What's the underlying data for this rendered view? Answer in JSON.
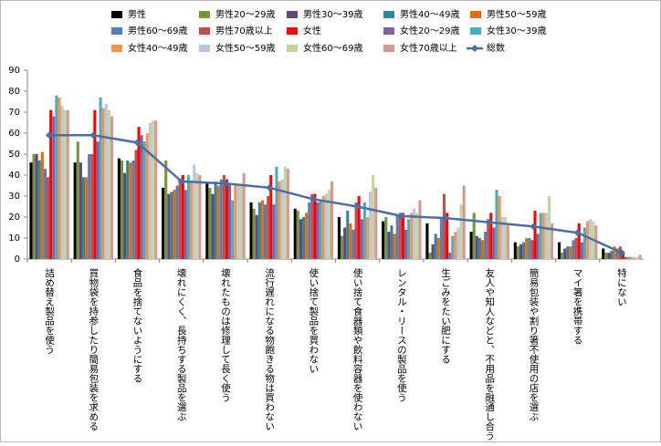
{
  "chart_data": {
    "type": "bar",
    "categories": [
      "詰め替え製品を使う",
      "買物袋を持参したり簡易包装を求める",
      "食品を捨てないようにする",
      "壊れにくく、長持ちする製品を選ぶ",
      "壊れたものは修理して長く使う",
      "流行遅れになる物飽きる物は買わない",
      "使い捨て製品を買わない",
      "使い捨て食器類や飲料容器を使わない",
      "レンタル・リースの製品を使う",
      "生ごみをたい肥にする",
      "友人や知人などと、不用品を融通し合う",
      "簡易包装や割り箸不使用の店を選ぶ",
      "マイ箸を携帯する",
      "特にない"
    ],
    "series": [
      {
        "name": "男性",
        "color": "#000000",
        "values": [
          46,
          46,
          48,
          34,
          36,
          27,
          24,
          20,
          18,
          17,
          13,
          8,
          8,
          5
        ]
      },
      {
        "name": "男性20～29歳",
        "color": "#77933c",
        "values": [
          50,
          56,
          47,
          47,
          34,
          24,
          23,
          11,
          20,
          3,
          22,
          6,
          3,
          3
        ]
      },
      {
        "name": "男性30～39歳",
        "color": "#604a7b",
        "values": [
          50,
          46,
          41,
          31,
          31,
          21,
          19,
          15,
          13,
          7,
          11,
          7,
          5,
          3
        ]
      },
      {
        "name": "男性40～49歳",
        "color": "#31859c",
        "values": [
          47,
          39,
          47,
          32,
          37,
          27,
          20,
          23,
          16,
          12,
          10,
          8,
          6,
          4
        ]
      },
      {
        "name": "男性50～59歳",
        "color": "#e46c0a",
        "values": [
          51,
          39,
          46,
          33,
          35,
          28,
          22,
          17,
          12,
          10,
          9,
          10,
          6,
          6
        ]
      },
      {
        "name": "男性60～69歳",
        "color": "#4f81bd",
        "values": [
          43,
          50,
          47,
          35,
          38,
          26,
          27,
          14,
          21,
          20,
          13,
          10,
          9,
          5
        ]
      },
      {
        "name": "男性70歳以上",
        "color": "#c0504d",
        "values": [
          39,
          50,
          52,
          38,
          40,
          30,
          31,
          27,
          22,
          31,
          19,
          9,
          10,
          6
        ]
      },
      {
        "name": "女性",
        "color": "#ff0000",
        "values": [
          71,
          71,
          63,
          40,
          38,
          40,
          31,
          30,
          22,
          22,
          22,
          23,
          17,
          3
        ]
      },
      {
        "name": "女性20～29歳",
        "color": "#8064a2",
        "values": [
          68,
          56,
          59,
          33,
          36,
          26,
          27,
          19,
          14,
          3,
          15,
          12,
          8,
          1
        ]
      },
      {
        "name": "女性30～39歳",
        "color": "#4bacc6",
        "values": [
          78,
          77,
          56,
          40,
          28,
          44,
          28,
          27,
          19,
          11,
          33,
          22,
          15,
          1
        ]
      },
      {
        "name": "女性40～49歳",
        "color": "#f79646",
        "values": [
          77,
          72,
          60,
          37,
          35,
          37,
          30,
          20,
          22,
          13,
          30,
          22,
          18,
          1
        ]
      },
      {
        "name": "女性50～59歳",
        "color": "#b9c7e3",
        "values": [
          73,
          74,
          65,
          45,
          35,
          38,
          31,
          32,
          24,
          15,
          20,
          22,
          19,
          1
        ]
      },
      {
        "name": "女性60～69歳",
        "color": "#c3d69b",
        "values": [
          71,
          71,
          66,
          41,
          35,
          44,
          33,
          40,
          22,
          26,
          20,
          30,
          18,
          1
        ]
      },
      {
        "name": "女性70歳以上",
        "color": "#d99694",
        "values": [
          71,
          68,
          66,
          40,
          41,
          43,
          37,
          34,
          28,
          35,
          16,
          17,
          16,
          2
        ]
      },
      {
        "name": "総数",
        "color": "#4a6fa5",
        "type": "line",
        "values": [
          59,
          59,
          55.5,
          37,
          36,
          34,
          28.5,
          25,
          20.5,
          19.5,
          17.5,
          15.5,
          12.5,
          3
        ]
      }
    ],
    "ylim": [
      0,
      90
    ],
    "yticks": [
      0,
      10,
      20,
      30,
      40,
      50,
      60,
      70,
      80,
      90
    ]
  }
}
